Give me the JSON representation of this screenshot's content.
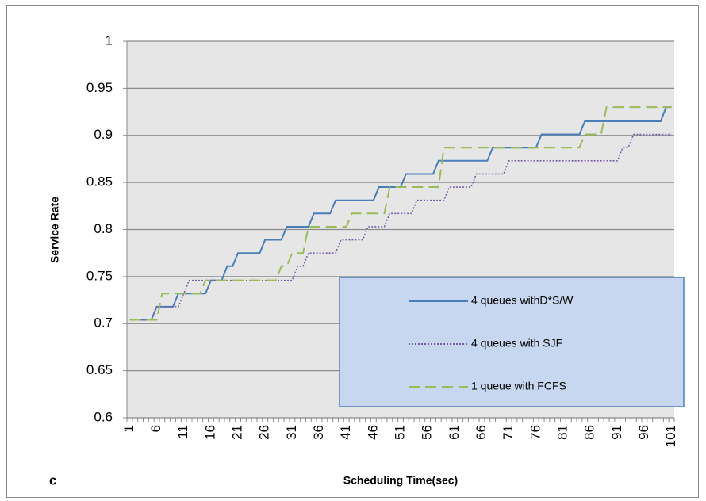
{
  "chart_data": {
    "type": "line",
    "annotation": "c",
    "x_label": "Scheduling Time(sec)",
    "y_label": "Service Rate",
    "categories": [
      1,
      null,
      null,
      null,
      null,
      6,
      null,
      null,
      null,
      null,
      11,
      null,
      null,
      null,
      null,
      16,
      null,
      null,
      null,
      null,
      21,
      null,
      null,
      null,
      null,
      26,
      null,
      null,
      null,
      null,
      31,
      null,
      null,
      null,
      null,
      36,
      null,
      null,
      null,
      null,
      41,
      null,
      null,
      null,
      null,
      46,
      null,
      null,
      null,
      null,
      51,
      null,
      null,
      null,
      null,
      56,
      null,
      null,
      null,
      null,
      61,
      null,
      null,
      null,
      null,
      66,
      null,
      null,
      null,
      null,
      71,
      null,
      null,
      null,
      null,
      76,
      null,
      null,
      null,
      null,
      81,
      null,
      null,
      null,
      null,
      86,
      null,
      null,
      null,
      null,
      91,
      null,
      null,
      null,
      null,
      96,
      null,
      null,
      null,
      null,
      101
    ],
    "ylim": [
      0.6,
      1
    ],
    "yticks": [
      0.6,
      0.65,
      0.7,
      0.75,
      0.8,
      0.85,
      0.9,
      0.95,
      1
    ],
    "grid": true,
    "legend": "lower right",
    "series": [
      {
        "name": "4 queues withD*S/W",
        "color": "#4a7ebb",
        "dash": "solid",
        "values": [
          0.704,
          0.704,
          0.704,
          0.704,
          0.704,
          0.718,
          0.718,
          0.718,
          0.718,
          0.732,
          0.732,
          0.732,
          0.732,
          0.732,
          0.732,
          0.746,
          0.746,
          0.746,
          0.761,
          0.761,
          0.775,
          0.775,
          0.775,
          0.775,
          0.775,
          0.789,
          0.789,
          0.789,
          0.789,
          0.803,
          0.803,
          0.803,
          0.803,
          0.803,
          0.817,
          0.817,
          0.817,
          0.817,
          0.831,
          0.831,
          0.831,
          0.831,
          0.831,
          0.831,
          0.831,
          0.831,
          0.845,
          0.845,
          0.845,
          0.845,
          0.845,
          0.859,
          0.859,
          0.859,
          0.859,
          0.859,
          0.859,
          0.873,
          0.873,
          0.873,
          0.873,
          0.873,
          0.873,
          0.873,
          0.873,
          0.873,
          0.873,
          0.887,
          0.887,
          0.887,
          0.887,
          0.887,
          0.887,
          0.887,
          0.887,
          0.887,
          0.901,
          0.901,
          0.901,
          0.901,
          0.901,
          0.901,
          0.901,
          0.901,
          0.915,
          0.915,
          0.915,
          0.915,
          0.915,
          0.915,
          0.915,
          0.915,
          0.915,
          0.915,
          0.915,
          0.915,
          0.915,
          0.915,
          0.915,
          0.93,
          0.93
        ]
      },
      {
        "name": "4 queues with SJF",
        "color": "#7a5fa8",
        "dash": "dotted",
        "values": [
          0.704,
          0.704,
          0.704,
          0.704,
          0.704,
          0.718,
          0.718,
          0.718,
          0.718,
          0.718,
          0.732,
          0.746,
          0.746,
          0.746,
          0.746,
          0.746,
          0.746,
          0.746,
          0.746,
          0.746,
          0.746,
          0.746,
          0.746,
          0.746,
          0.746,
          0.746,
          0.746,
          0.746,
          0.746,
          0.746,
          0.746,
          0.761,
          0.761,
          0.775,
          0.775,
          0.775,
          0.775,
          0.775,
          0.775,
          0.789,
          0.789,
          0.789,
          0.789,
          0.789,
          0.803,
          0.803,
          0.803,
          0.803,
          0.817,
          0.817,
          0.817,
          0.817,
          0.817,
          0.831,
          0.831,
          0.831,
          0.831,
          0.831,
          0.831,
          0.845,
          0.845,
          0.845,
          0.845,
          0.845,
          0.859,
          0.859,
          0.859,
          0.859,
          0.859,
          0.859,
          0.873,
          0.873,
          0.873,
          0.873,
          0.873,
          0.873,
          0.873,
          0.873,
          0.873,
          0.873,
          0.873,
          0.873,
          0.873,
          0.873,
          0.873,
          0.873,
          0.873,
          0.873,
          0.873,
          0.873,
          0.873,
          0.887,
          0.887,
          0.901,
          0.901,
          0.901,
          0.901,
          0.901,
          0.901,
          0.901,
          0.901
        ]
      },
      {
        "name": "1 queue with FCFS",
        "color": "#9bbb59",
        "dash": "dashed",
        "values": [
          0.704,
          0.704,
          0.704,
          0.704,
          0.704,
          0.704,
          0.732,
          0.732,
          0.732,
          0.732,
          0.732,
          0.732,
          0.732,
          0.732,
          0.746,
          0.746,
          0.746,
          0.746,
          0.746,
          0.746,
          0.746,
          0.746,
          0.746,
          0.746,
          0.746,
          0.746,
          0.746,
          0.746,
          0.761,
          0.761,
          0.775,
          0.775,
          0.775,
          0.803,
          0.803,
          0.803,
          0.803,
          0.803,
          0.803,
          0.803,
          0.803,
          0.817,
          0.817,
          0.817,
          0.817,
          0.817,
          0.817,
          0.817,
          0.845,
          0.845,
          0.845,
          0.845,
          0.845,
          0.845,
          0.845,
          0.845,
          0.845,
          0.845,
          0.887,
          0.887,
          0.887,
          0.887,
          0.887,
          0.887,
          0.887,
          0.887,
          0.887,
          0.887,
          0.887,
          0.887,
          0.887,
          0.887,
          0.887,
          0.887,
          0.887,
          0.887,
          0.887,
          0.887,
          0.887,
          0.887,
          0.887,
          0.887,
          0.887,
          0.887,
          0.901,
          0.901,
          0.901,
          0.901,
          0.93,
          0.93,
          0.93,
          0.93,
          0.93,
          0.93,
          0.93,
          0.93,
          0.93,
          0.93,
          0.93,
          0.93,
          0.93
        ]
      }
    ]
  }
}
